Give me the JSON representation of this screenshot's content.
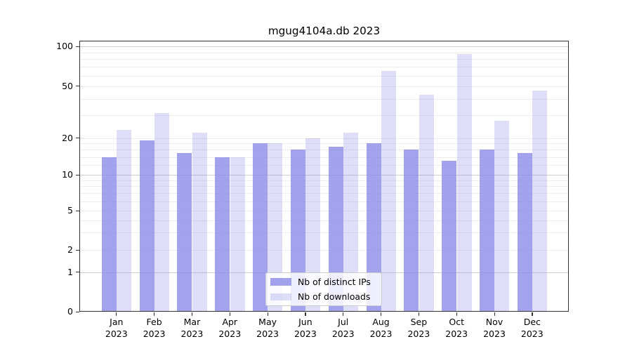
{
  "chart_data": {
    "type": "bar",
    "title": "mgug4104a.db 2023",
    "categories": [
      "Jan 2023",
      "Feb 2023",
      "Mar 2023",
      "Apr 2023",
      "May 2023",
      "Jun 2023",
      "Jul 2023",
      "Aug 2023",
      "Sep 2023",
      "Oct 2023",
      "Nov 2023",
      "Dec 2023"
    ],
    "series": [
      {
        "name": "Nb of distinct IPs",
        "color": "rgba(136,136,232,0.78)",
        "values": [
          14,
          19,
          15,
          14,
          18,
          16,
          17,
          18,
          16,
          13,
          16,
          15
        ]
      },
      {
        "name": "Nb of downloads",
        "color": "rgba(136,136,232,0.28)",
        "values": [
          23,
          31,
          22,
          14,
          18,
          20,
          22,
          65,
          43,
          88,
          27,
          46
        ]
      }
    ],
    "yscale": "symlog",
    "ylim": [
      0,
      111
    ],
    "yticks": [
      100,
      50,
      20,
      10,
      5,
      2,
      1,
      0
    ],
    "minor_grid_values": [
      3,
      4,
      6,
      7,
      8,
      9,
      12,
      14,
      16,
      18,
      30,
      40,
      60,
      70,
      80,
      90
    ],
    "major_grid_values": [
      1,
      10,
      100
    ],
    "xlabel": "",
    "ylabel": "",
    "grid": true,
    "legend_position": "lower center"
  },
  "legend": {
    "items": [
      {
        "label": "Nb of distinct IPs"
      },
      {
        "label": "Nb of downloads"
      }
    ]
  }
}
